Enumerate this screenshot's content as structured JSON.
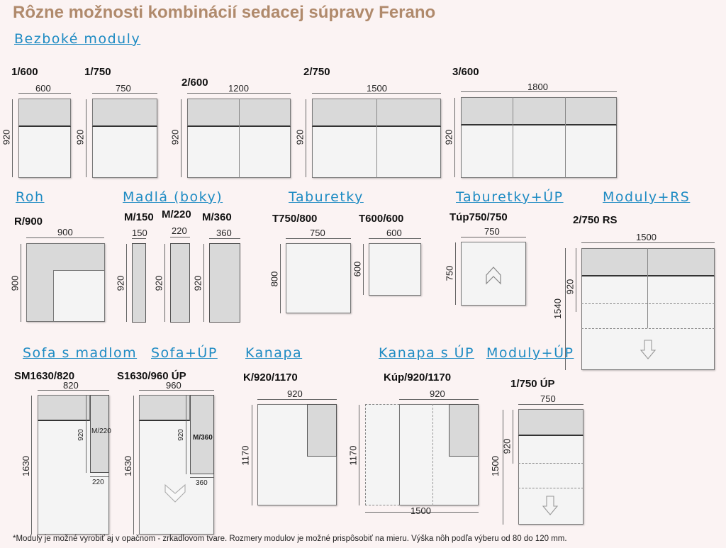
{
  "title": "Rôzne možnosti kombinácií sedacej súpravy Ferano",
  "sections": {
    "bezbokе": "Bezboké moduly",
    "roh": "Roh",
    "madla": "Madlá (boky)",
    "taburetky": "Taburetky",
    "taburetky_up": "Taburetky+ÚP",
    "moduly_rs": "Moduly+RS",
    "sofa_madlom": "Sofa s madlom",
    "sofa_up": "Sofa+ÚP",
    "kanapa": "Kanapa",
    "kanapa_up": "Kanapa s ÚP",
    "moduly_up": "Moduly+ÚP"
  },
  "modules": {
    "m1_600": {
      "code": "1/600",
      "w": "600",
      "h": "920"
    },
    "m1_750": {
      "code": "1/750",
      "w": "750",
      "h": "920"
    },
    "m2_600": {
      "code": "2/600",
      "w": "1200",
      "h": "920"
    },
    "m2_750": {
      "code": "2/750",
      "w": "1500",
      "h": "920"
    },
    "m3_600": {
      "code": "3/600",
      "w": "1800",
      "h": "920"
    },
    "r900": {
      "code": "R/900",
      "w": "900",
      "h": "900"
    },
    "m150": {
      "code": "M/150",
      "w": "150",
      "h": "920"
    },
    "m220": {
      "code": "M/220",
      "w": "220",
      "h": "920"
    },
    "m360": {
      "code": "M/360",
      "w": "360",
      "h": "920"
    },
    "t750": {
      "code": "T750/800",
      "w": "750",
      "h": "800"
    },
    "t600": {
      "code": "T600/600",
      "w": "600",
      "h": "600"
    },
    "tup": {
      "code": "Túp750/750",
      "w": "750",
      "h": "750"
    },
    "rs": {
      "code": "2/750 RS",
      "w": "1500",
      "h_total": "1540",
      "h_seat": "920"
    },
    "sm": {
      "code": "SM1630/820",
      "w": "820",
      "h": "1630",
      "arm_h": "920",
      "arm_label": "M/220",
      "arm_w": "220"
    },
    "s1630": {
      "code": "S1630/960 ÚP",
      "w": "960",
      "h": "1630",
      "arm_h": "920",
      "arm_label": "M/360",
      "arm_w": "360"
    },
    "k920": {
      "code": "K/920/1170",
      "w": "920",
      "h": "1170"
    },
    "kup": {
      "code": "Kúp/920/1170",
      "w": "920",
      "h": "1170",
      "w_bottom": "1500"
    },
    "up1750": {
      "code": "1/750 ÚP",
      "w": "750",
      "h_total": "1500",
      "h_seat": "920"
    }
  },
  "footnote": "*Moduly je možné vyrobiť aj v opačnom - zrkadlovom tvare.  Rozmery modulov je možné prispôsobiť na mieru. Výška nôh podľa výberu od 80 do 120 mm."
}
